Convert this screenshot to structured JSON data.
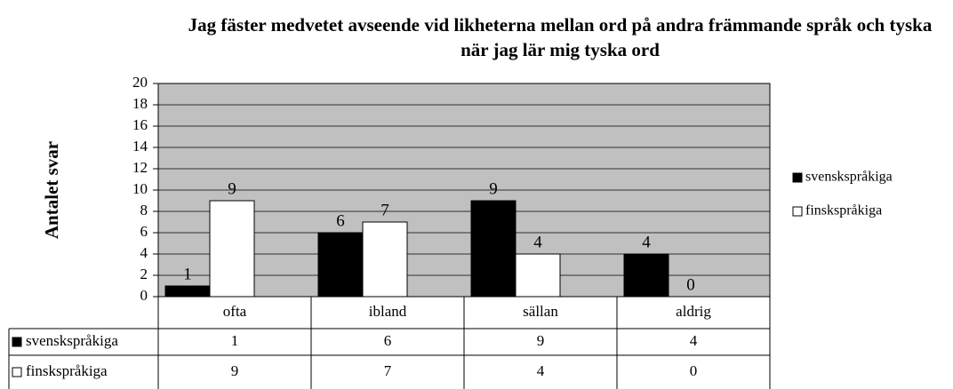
{
  "chart_data": {
    "type": "bar",
    "title": "Jag fäster medvetet avseende vid likheterna mellan ord på andra främmande språk och tyska när jag lär mig tyska ord",
    "y_label": "Antalet svar",
    "categories": [
      "ofta",
      "ibland",
      "sällan",
      "aldrig"
    ],
    "series": [
      {
        "name": "svenskspråkiga",
        "color": "#000000",
        "values": [
          1,
          6,
          9,
          4
        ]
      },
      {
        "name": "finskspråkiga",
        "color": "#ffffff",
        "values": [
          9,
          7,
          4,
          0
        ]
      }
    ],
    "ylim": [
      0,
      20
    ],
    "yticks": [
      0,
      2,
      4,
      6,
      8,
      10,
      12,
      14,
      16,
      18,
      20
    ],
    "grid": true,
    "legend": "right",
    "background": "#c0c0c0",
    "data_table": true
  }
}
